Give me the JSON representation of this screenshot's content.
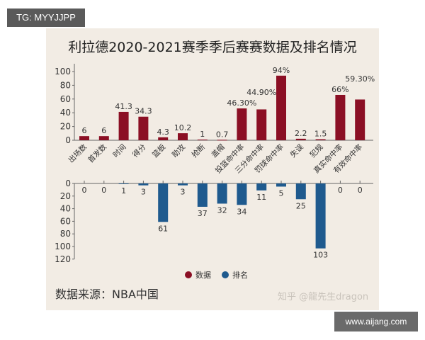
{
  "badges": {
    "tg": "TG: MYYJJPP",
    "site": "www.aijang.com"
  },
  "chart_data": {
    "type": "bar",
    "title": "利拉德2020-2021赛季季后赛赛数据及排名情况",
    "categories": [
      "出场数",
      "首发数",
      "时间",
      "得分",
      "篮板",
      "助攻",
      "抢断",
      "盖帽",
      "投篮命中率",
      "三分命中率",
      "罚球命中率",
      "失误",
      "犯规",
      "真实命中率",
      "有效命中率"
    ],
    "series": [
      {
        "name": "数据",
        "color": "#8b0f24",
        "values": [
          6,
          6,
          41.3,
          34.3,
          4.3,
          10.2,
          1,
          0.7,
          46.3,
          44.9,
          94,
          2.2,
          1.5,
          66,
          59.3
        ],
        "labels": [
          "6",
          "6",
          "41.3",
          "34.3",
          "4.3",
          "10.2",
          "1",
          "0.7",
          "46.30%",
          "44.90%",
          "94%",
          "2.2",
          "1.5",
          "66%",
          "59.30%"
        ],
        "ylim": [
          0,
          110
        ],
        "yticks": [
          0,
          20,
          40,
          60,
          80,
          100
        ]
      },
      {
        "name": "排名",
        "color": "#1f5a8e",
        "values": [
          0,
          0,
          1,
          3,
          61,
          3,
          37,
          32,
          34,
          11,
          5,
          25,
          103,
          0,
          0
        ],
        "labels": [
          "0",
          "0",
          "1",
          "3",
          "61",
          "3",
          "37",
          "32",
          "34",
          "11",
          "5",
          "25",
          "103",
          "0",
          "0"
        ],
        "ylim": [
          0,
          120
        ],
        "yticks": [
          0,
          20,
          40,
          60,
          80,
          100,
          120
        ],
        "inverted": true
      }
    ],
    "legend": "bottom-center",
    "source": "数据来源：NBA中国",
    "watermark": "知乎 @龍先生dragon",
    "grid": false
  }
}
